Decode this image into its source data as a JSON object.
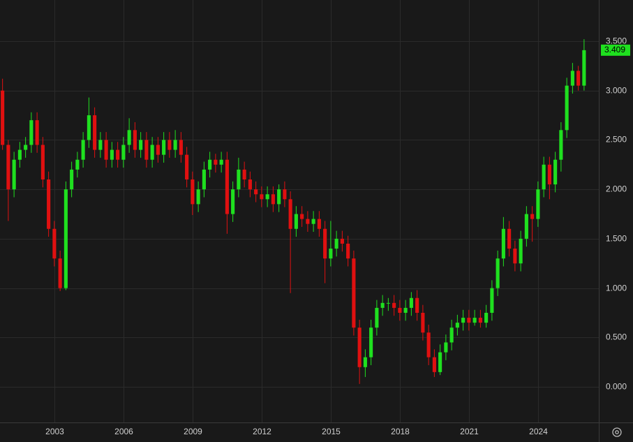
{
  "chart_data": {
    "type": "candlestick",
    "x": [
      2000.75,
      2001,
      2001.25,
      2001.5,
      2001.75,
      2002,
      2002.25,
      2002.5,
      2002.75,
      2003,
      2003.25,
      2003.5,
      2003.75,
      2004,
      2004.25,
      2004.5,
      2004.75,
      2005,
      2005.25,
      2005.5,
      2005.75,
      2006,
      2006.25,
      2006.5,
      2006.75,
      2007,
      2007.25,
      2007.5,
      2007.75,
      2008,
      2008.25,
      2008.5,
      2008.75,
      2009,
      2009.25,
      2009.5,
      2009.75,
      2010,
      2010.25,
      2010.5,
      2010.75,
      2011,
      2011.25,
      2011.5,
      2011.75,
      2012,
      2012.25,
      2012.5,
      2012.75,
      2013,
      2013.25,
      2013.5,
      2013.75,
      2014,
      2014.25,
      2014.5,
      2014.75,
      2015,
      2015.25,
      2015.5,
      2015.75,
      2016,
      2016.25,
      2016.5,
      2016.75,
      2017,
      2017.25,
      2017.5,
      2017.75,
      2018,
      2018.25,
      2018.5,
      2018.75,
      2019,
      2019.25,
      2019.5,
      2019.75,
      2020,
      2020.25,
      2020.5,
      2020.75,
      2021,
      2021.25,
      2021.5,
      2021.75,
      2022,
      2022.25,
      2022.5,
      2022.75,
      2023,
      2023.25,
      2023.5,
      2023.75,
      2024,
      2024.25,
      2024.5,
      2024.75,
      2025,
      2025.25,
      2025.5,
      2025.75,
      2026
    ],
    "open": [
      3.0,
      2.45,
      2.0,
      2.3,
      2.4,
      2.45,
      2.7,
      2.45,
      2.1,
      1.6,
      1.3,
      1.0,
      2.0,
      2.2,
      2.3,
      2.5,
      2.75,
      2.4,
      2.5,
      2.3,
      2.4,
      2.3,
      2.45,
      2.6,
      2.4,
      2.5,
      2.3,
      2.45,
      2.35,
      2.5,
      2.4,
      2.5,
      2.35,
      2.1,
      1.85,
      2.0,
      2.2,
      2.3,
      2.25,
      2.3,
      1.75,
      2.0,
      2.2,
      2.1,
      2.0,
      1.95,
      1.9,
      1.95,
      1.85,
      2.0,
      1.9,
      1.6,
      1.75,
      1.7,
      1.65,
      1.7,
      1.6,
      1.3,
      1.4,
      1.5,
      1.45,
      1.3,
      0.6,
      0.2,
      0.3,
      0.6,
      0.8,
      0.85,
      0.85,
      0.8,
      0.75,
      0.8,
      0.9,
      0.75,
      0.55,
      0.3,
      0.15,
      0.35,
      0.45,
      0.6,
      0.65,
      0.7,
      0.65,
      0.7,
      0.65,
      0.75,
      1.0,
      1.3,
      1.6,
      1.4,
      1.25,
      1.5,
      1.75,
      1.7,
      2.0,
      2.25,
      2.05,
      2.3,
      2.6,
      3.05,
      3.2,
      3.05
    ],
    "high": [
      3.12,
      2.5,
      2.38,
      2.48,
      2.53,
      2.78,
      2.78,
      2.53,
      2.18,
      1.68,
      1.38,
      2.08,
      2.28,
      2.38,
      2.58,
      2.93,
      2.83,
      2.58,
      2.58,
      2.48,
      2.48,
      2.53,
      2.72,
      2.68,
      2.58,
      2.58,
      2.53,
      2.53,
      2.58,
      2.58,
      2.6,
      2.58,
      2.43,
      2.18,
      2.08,
      2.28,
      2.38,
      2.36,
      2.38,
      2.38,
      2.08,
      2.32,
      2.28,
      2.18,
      2.08,
      2.03,
      2.03,
      2.03,
      2.05,
      2.08,
      1.98,
      1.83,
      1.83,
      1.78,
      1.78,
      1.78,
      1.68,
      1.68,
      1.58,
      1.58,
      1.53,
      1.38,
      0.68,
      0.38,
      0.68,
      0.88,
      0.93,
      0.9,
      0.93,
      0.88,
      0.88,
      0.96,
      0.98,
      0.83,
      0.63,
      0.38,
      0.43,
      0.53,
      0.68,
      0.73,
      0.78,
      0.78,
      0.78,
      0.78,
      0.83,
      1.08,
      1.38,
      1.72,
      1.68,
      1.48,
      1.58,
      1.83,
      1.83,
      2.08,
      2.33,
      2.33,
      2.38,
      2.68,
      3.13,
      3.28,
      3.25,
      3.52
    ],
    "low": [
      2.4,
      1.68,
      1.92,
      2.22,
      2.32,
      2.37,
      2.37,
      2.02,
      1.52,
      1.22,
      0.97,
      0.98,
      1.92,
      2.12,
      2.22,
      2.42,
      2.32,
      2.32,
      2.22,
      2.22,
      2.22,
      2.22,
      2.37,
      2.32,
      2.32,
      2.22,
      2.22,
      2.27,
      2.27,
      2.32,
      2.32,
      2.27,
      2.02,
      1.74,
      1.77,
      1.92,
      2.12,
      2.17,
      2.17,
      1.55,
      1.67,
      1.92,
      2.02,
      1.92,
      1.87,
      1.82,
      1.82,
      1.77,
      1.77,
      1.82,
      0.95,
      1.52,
      1.62,
      1.57,
      1.57,
      1.52,
      1.05,
      1.22,
      1.32,
      1.37,
      1.22,
      0.52,
      0.03,
      0.1,
      0.22,
      0.52,
      0.72,
      0.77,
      0.72,
      0.67,
      0.67,
      0.72,
      0.67,
      0.47,
      0.22,
      0.1,
      0.12,
      0.27,
      0.37,
      0.52,
      0.57,
      0.57,
      0.62,
      0.6,
      0.6,
      0.67,
      0.92,
      1.22,
      1.32,
      1.17,
      1.17,
      1.42,
      1.47,
      1.62,
      1.92,
      1.9,
      1.97,
      2.18,
      2.52,
      2.97,
      3.0,
      3.0
    ],
    "close": [
      2.45,
      2.0,
      2.3,
      2.4,
      2.45,
      2.7,
      2.45,
      2.1,
      1.6,
      1.3,
      1.0,
      2.0,
      2.2,
      2.3,
      2.5,
      2.75,
      2.4,
      2.5,
      2.3,
      2.4,
      2.3,
      2.45,
      2.6,
      2.4,
      2.5,
      2.3,
      2.45,
      2.35,
      2.5,
      2.4,
      2.5,
      2.35,
      2.1,
      1.85,
      2.0,
      2.2,
      2.3,
      2.25,
      2.3,
      1.75,
      2.0,
      2.2,
      2.1,
      2.0,
      1.95,
      1.9,
      1.95,
      1.85,
      2.0,
      1.9,
      1.6,
      1.75,
      1.7,
      1.65,
      1.7,
      1.6,
      1.3,
      1.4,
      1.5,
      1.45,
      1.3,
      0.6,
      0.2,
      0.3,
      0.6,
      0.8,
      0.85,
      0.85,
      0.8,
      0.75,
      0.8,
      0.9,
      0.75,
      0.55,
      0.3,
      0.15,
      0.35,
      0.45,
      0.6,
      0.65,
      0.7,
      0.65,
      0.7,
      0.65,
      0.75,
      1.0,
      1.3,
      1.6,
      1.4,
      1.25,
      1.5,
      1.75,
      1.7,
      2.0,
      2.25,
      2.05,
      2.3,
      2.6,
      3.05,
      3.2,
      3.05,
      3.409
    ],
    "up_color": "#1fe01f",
    "down_color": "#e01010",
    "xlim": [
      2000.64,
      2026.64
    ],
    "xticks": [
      2003,
      2006,
      2009,
      2012,
      2015,
      2018,
      2021,
      2024
    ],
    "ylim": [
      -0.36,
      3.917
    ],
    "yticks": [
      {
        "value": 0,
        "label": "0.000"
      },
      {
        "value": 0.5,
        "label": "0.500"
      },
      {
        "value": 1,
        "label": "1.000"
      },
      {
        "value": 1.5,
        "label": "1.500"
      },
      {
        "value": 2,
        "label": "2.000"
      },
      {
        "value": 2.5,
        "label": "2.500"
      },
      {
        "value": 3,
        "label": "3.000"
      },
      {
        "value": 3.5,
        "label": "3.500"
      }
    ],
    "grid": true
  }
}
